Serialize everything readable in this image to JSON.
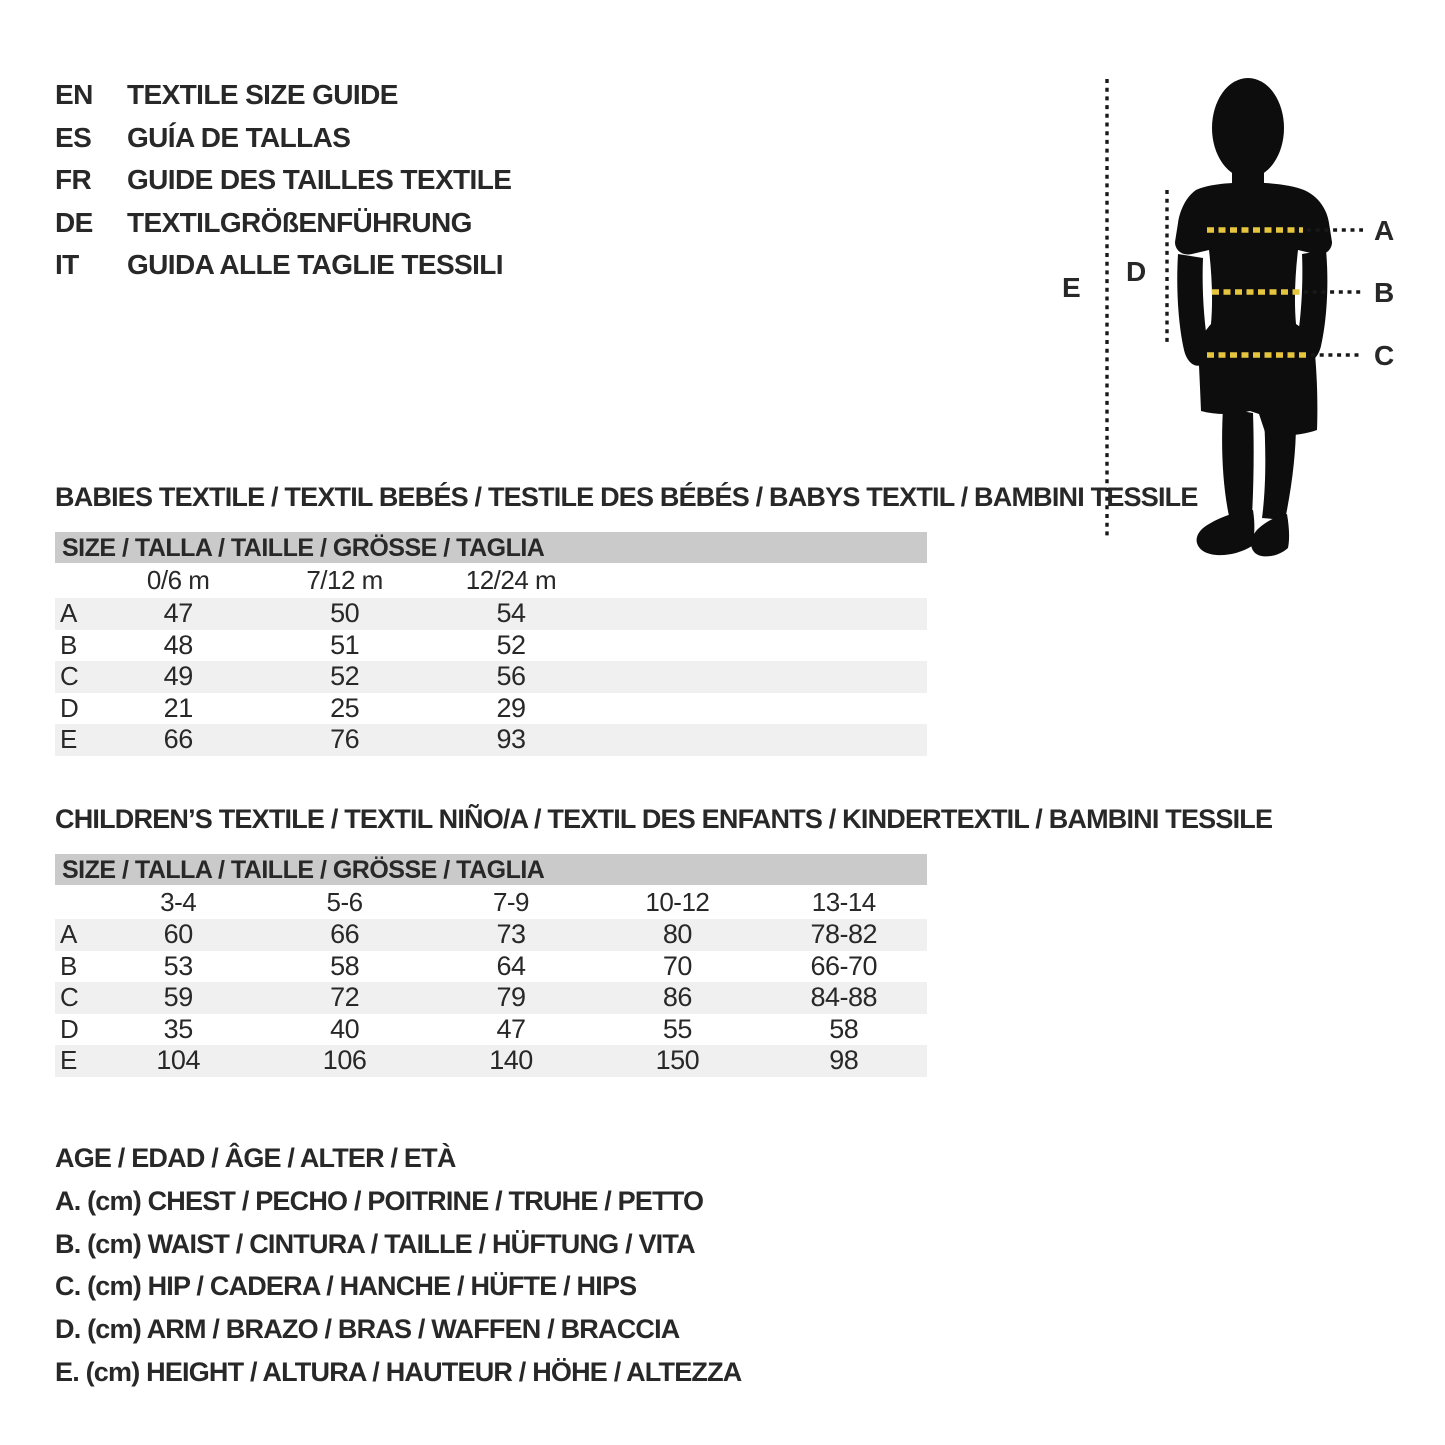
{
  "header": {
    "languages": [
      {
        "code": "EN",
        "title": "TEXTILE SIZE GUIDE"
      },
      {
        "code": "ES",
        "title": "GUÍA DE TALLAS"
      },
      {
        "code": "FR",
        "title": "GUIDE DES TAILLES TEXTILE"
      },
      {
        "code": "DE",
        "title": "TEXTILGRÖßENFÜHRUNG"
      },
      {
        "code": "IT",
        "title": "GUIDA ALLE TAGLIE TESSILI"
      }
    ]
  },
  "figure": {
    "measure_labels": [
      "A",
      "B",
      "C",
      "D",
      "E"
    ],
    "accent_color": "#e6c53e",
    "silhouette_color": "#0d0d0d"
  },
  "babies_table": {
    "title": "BABIES TEXTILE / TEXTIL BEBÉS / TESTILE DES BÉBÉS / BABYS TEXTIL / BAMBINI TESSILE",
    "size_header": "SIZE / TALLA / TAILLE / GRÖSSE / TAGLIA",
    "columns": [
      "0/6 m",
      "7/12 m",
      "12/24 m"
    ],
    "rows": [
      {
        "label": "A",
        "values": [
          "47",
          "50",
          "54"
        ]
      },
      {
        "label": "B",
        "values": [
          "48",
          "51",
          "52"
        ]
      },
      {
        "label": "C",
        "values": [
          "49",
          "52",
          "56"
        ]
      },
      {
        "label": "D",
        "values": [
          "21",
          "25",
          "29"
        ]
      },
      {
        "label": "E",
        "values": [
          "66",
          "76",
          "93"
        ]
      }
    ]
  },
  "children_table": {
    "title": "CHILDREN’S TEXTILE / TEXTIL NIÑO/A / TEXTIL DES ENFANTS / KINDERTEXTIL / BAMBINI TESSILE",
    "size_header": "SIZE / TALLA / TAILLE / GRÖSSE / TAGLIA",
    "columns": [
      "3-4",
      "5-6",
      "7-9",
      "10-12",
      "13-14"
    ],
    "rows": [
      {
        "label": "A",
        "values": [
          "60",
          "66",
          "73",
          "80",
          "78-82"
        ]
      },
      {
        "label": "B",
        "values": [
          "53",
          "58",
          "64",
          "70",
          "66-70"
        ]
      },
      {
        "label": "C",
        "values": [
          "59",
          "72",
          "79",
          "86",
          "84-88"
        ]
      },
      {
        "label": "D",
        "values": [
          "35",
          "40",
          "47",
          "55",
          "58"
        ]
      },
      {
        "label": "E",
        "values": [
          "104",
          "106",
          "140",
          "150",
          "98"
        ]
      }
    ]
  },
  "legend": {
    "lines": [
      "AGE / EDAD / ÂGE / ALTER / ETÀ",
      "A. (cm) CHEST / PECHO / POITRINE / TRUHE / PETTO",
      "B. (cm) WAIST / CINTURA / TAILLE / HÜFTUNG / VITA",
      "C. (cm) HIP / CADERA / HANCHE / HÜFTE / HIPS",
      "D. (cm) ARM / BRAZO / BRAS / WAFFEN / BRACCIA",
      "E. (cm) HEIGHT / ALTURA / HAUTEUR / HÖHE / ALTEZZA"
    ]
  },
  "colors": {
    "text": "#282828",
    "table_header_bg": "#cacaca",
    "row_stripe_bg": "#f0f0f0",
    "dash": "#181818"
  }
}
